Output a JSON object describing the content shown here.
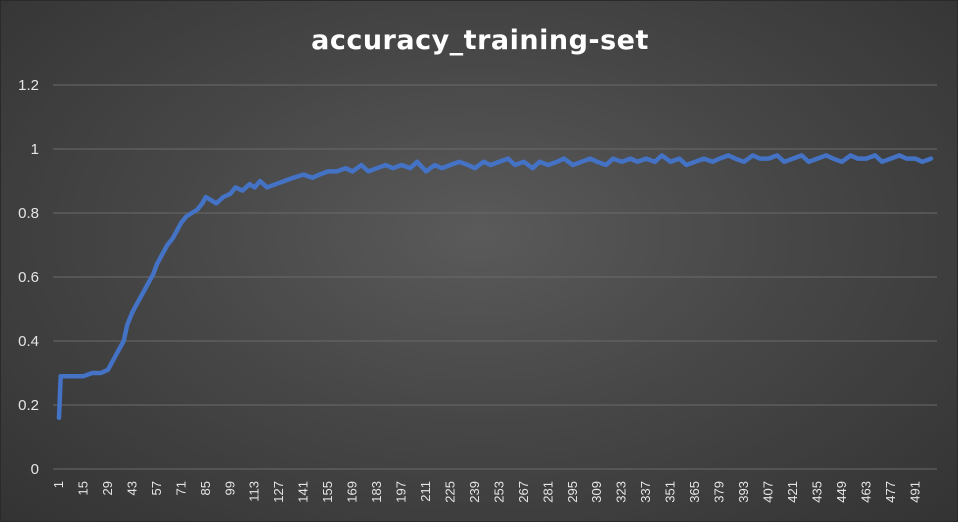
{
  "chart_data": {
    "type": "line",
    "title": "accuracy_training-set",
    "xlabel": "",
    "ylabel": "",
    "ylim": [
      0,
      1.2
    ],
    "yticks": [
      "0",
      "0.2",
      "0.4",
      "0.6",
      "0.8",
      "1",
      "1.2"
    ],
    "xlim": [
      1,
      500
    ],
    "xticks": [
      "1",
      "15",
      "29",
      "43",
      "57",
      "71",
      "85",
      "99",
      "113",
      "127",
      "141",
      "155",
      "169",
      "183",
      "197",
      "211",
      "225",
      "239",
      "253",
      "267",
      "281",
      "295",
      "309",
      "323",
      "337",
      "351",
      "365",
      "379",
      "393",
      "407",
      "421",
      "435",
      "449",
      "463",
      "477",
      "491"
    ],
    "grid": true,
    "legend": "none",
    "series": [
      {
        "color": "#4472c4",
        "x": [
          1,
          2,
          5,
          10,
          15,
          20,
          25,
          29,
          32,
          35,
          38,
          40,
          43,
          46,
          49,
          52,
          55,
          57,
          60,
          63,
          66,
          68,
          71,
          74,
          77,
          80,
          83,
          85,
          88,
          91,
          95,
          99,
          102,
          106,
          110,
          113,
          116,
          120,
          125,
          130,
          135,
          141,
          146,
          150,
          155,
          160,
          165,
          169,
          174,
          178,
          183,
          188,
          192,
          197,
          202,
          206,
          211,
          216,
          220,
          225,
          230,
          235,
          239,
          244,
          248,
          253,
          258,
          262,
          267,
          272,
          276,
          281,
          286,
          290,
          295,
          300,
          305,
          309,
          314,
          318,
          323,
          328,
          332,
          337,
          342,
          346,
          351,
          356,
          360,
          365,
          370,
          375,
          379,
          384,
          388,
          393,
          398,
          402,
          407,
          412,
          416,
          421,
          426,
          430,
          435,
          440,
          444,
          449,
          454,
          458,
          463,
          468,
          472,
          477,
          482,
          486,
          491,
          495,
          500
        ],
        "y": [
          0.16,
          0.29,
          0.29,
          0.29,
          0.29,
          0.3,
          0.3,
          0.31,
          0.34,
          0.37,
          0.4,
          0.45,
          0.49,
          0.52,
          0.55,
          0.58,
          0.61,
          0.64,
          0.67,
          0.7,
          0.72,
          0.74,
          0.77,
          0.79,
          0.8,
          0.81,
          0.83,
          0.85,
          0.84,
          0.83,
          0.85,
          0.86,
          0.88,
          0.87,
          0.89,
          0.88,
          0.9,
          0.88,
          0.89,
          0.9,
          0.91,
          0.92,
          0.91,
          0.92,
          0.93,
          0.93,
          0.94,
          0.93,
          0.95,
          0.93,
          0.94,
          0.95,
          0.94,
          0.95,
          0.94,
          0.96,
          0.93,
          0.95,
          0.94,
          0.95,
          0.96,
          0.95,
          0.94,
          0.96,
          0.95,
          0.96,
          0.97,
          0.95,
          0.96,
          0.94,
          0.96,
          0.95,
          0.96,
          0.97,
          0.95,
          0.96,
          0.97,
          0.96,
          0.95,
          0.97,
          0.96,
          0.97,
          0.96,
          0.97,
          0.96,
          0.98,
          0.96,
          0.97,
          0.95,
          0.96,
          0.97,
          0.96,
          0.97,
          0.98,
          0.97,
          0.96,
          0.98,
          0.97,
          0.97,
          0.98,
          0.96,
          0.97,
          0.98,
          0.96,
          0.97,
          0.98,
          0.97,
          0.96,
          0.98,
          0.97,
          0.97,
          0.98,
          0.96,
          0.97,
          0.98,
          0.97,
          0.97,
          0.96,
          0.97
        ]
      }
    ]
  }
}
